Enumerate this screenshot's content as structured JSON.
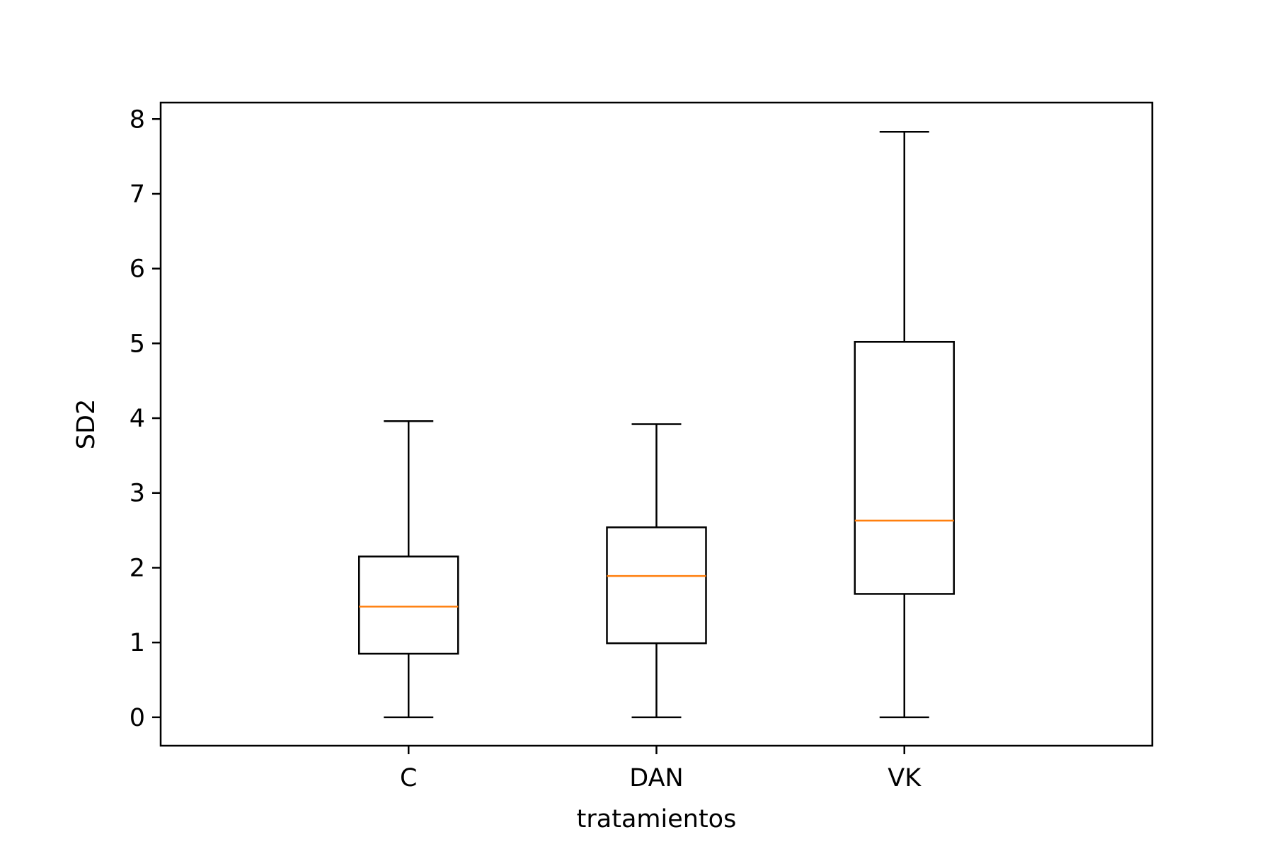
{
  "chart_data": {
    "type": "box",
    "title": "",
    "xlabel": "tratamientos",
    "ylabel": "SD2",
    "ylim": [
      -0.38,
      8.22
    ],
    "yticks": [
      0,
      1,
      2,
      3,
      4,
      5,
      6,
      7,
      8
    ],
    "categories": [
      "C",
      "DAN",
      "VK"
    ],
    "boxes": [
      {
        "category": "C",
        "whisker_low": 0.0,
        "q1": 0.85,
        "median": 1.48,
        "q3": 2.15,
        "whisker_high": 3.96
      },
      {
        "category": "DAN",
        "whisker_low": 0.0,
        "q1": 0.99,
        "median": 1.89,
        "q3": 2.54,
        "whisker_high": 3.92
      },
      {
        "category": "VK",
        "whisker_low": 0.0,
        "q1": 1.65,
        "median": 2.63,
        "q3": 5.02,
        "whisker_high": 7.83
      }
    ],
    "grid": false,
    "colors": {
      "box": "#000000",
      "median": "#ff7f0e"
    }
  }
}
